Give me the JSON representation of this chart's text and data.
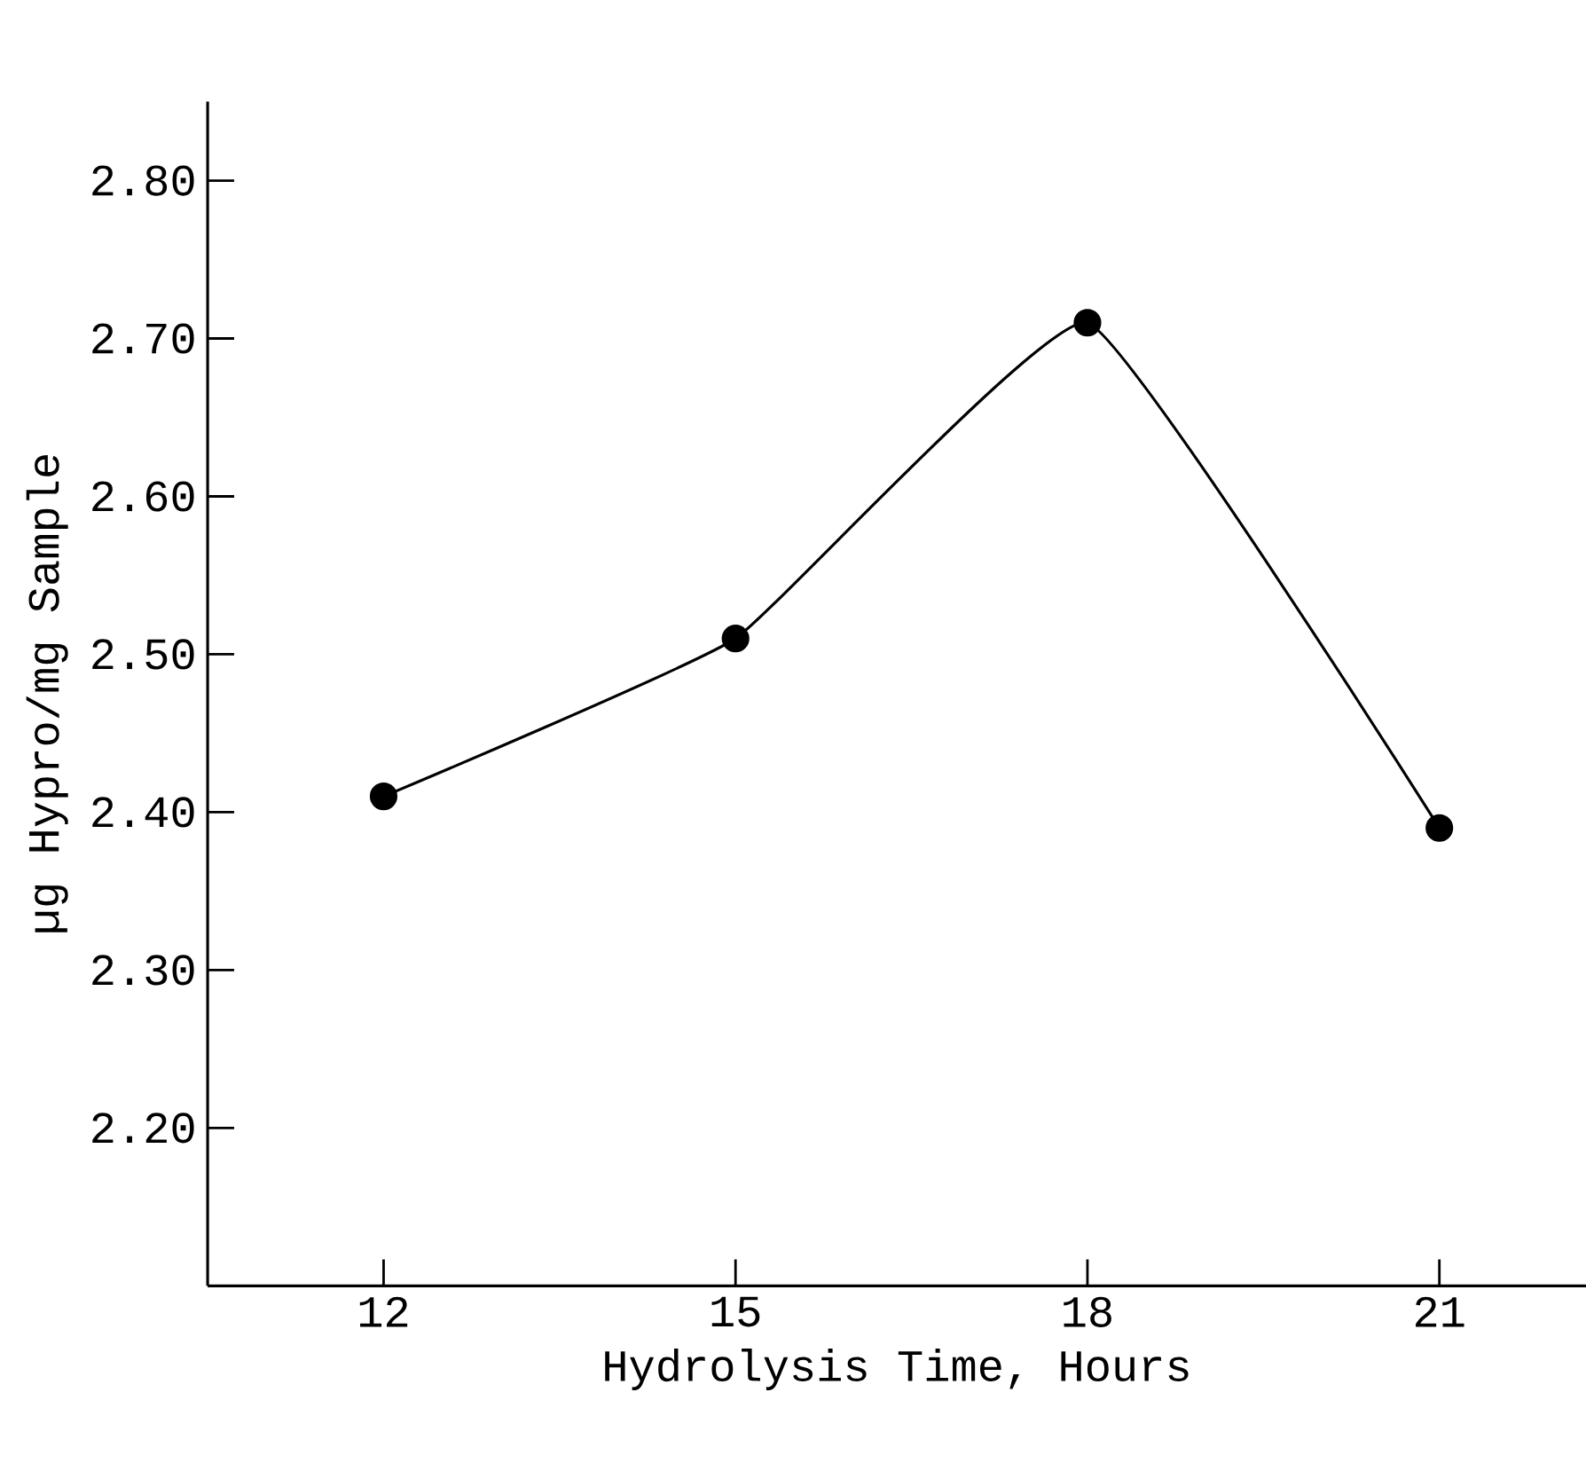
{
  "chart_data": {
    "type": "line",
    "xlabel": "Hydrolysis Time, Hours",
    "ylabel": "µg Hypro/mg Sample",
    "x": [
      12,
      15,
      18,
      21
    ],
    "series": [
      {
        "color": "#000000",
        "values": [
          2.41,
          2.51,
          2.71,
          2.39
        ]
      }
    ],
    "xlim": [
      10.5,
      22.25
    ],
    "xticks": [
      12,
      15,
      18,
      21
    ],
    "ylim": [
      2.1,
      2.85
    ],
    "yticks": [
      {
        "value": 2.2,
        "label": "2.20"
      },
      {
        "value": 2.3,
        "label": "2.30"
      },
      {
        "value": 2.4,
        "label": "2.40"
      },
      {
        "value": 2.5,
        "label": "2.50"
      },
      {
        "value": 2.6,
        "label": "2.60"
      },
      {
        "value": 2.7,
        "label": "2.70"
      },
      {
        "value": 2.8,
        "label": "2.80"
      }
    ],
    "marker": "circle",
    "line_style": "solid"
  }
}
